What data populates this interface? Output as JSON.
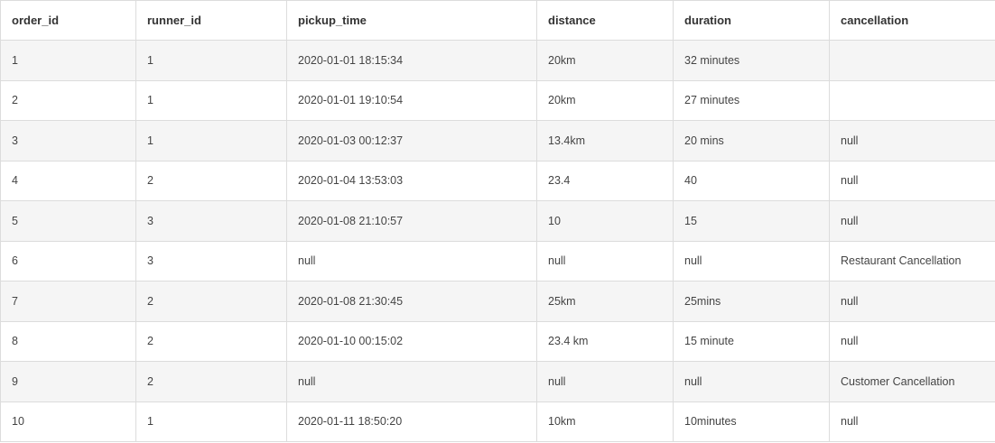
{
  "table": {
    "columns": [
      "order_id",
      "runner_id",
      "pickup_time",
      "distance",
      "duration",
      "cancellation"
    ],
    "rows": [
      [
        "1",
        "1",
        "2020-01-01 18:15:34",
        "20km",
        "32 minutes",
        ""
      ],
      [
        "2",
        "1",
        "2020-01-01 19:10:54",
        "20km",
        "27 minutes",
        ""
      ],
      [
        "3",
        "1",
        "2020-01-03 00:12:37",
        "13.4km",
        "20 mins",
        "null"
      ],
      [
        "4",
        "2",
        "2020-01-04 13:53:03",
        "23.4",
        "40",
        "null"
      ],
      [
        "5",
        "3",
        "2020-01-08 21:10:57",
        "10",
        "15",
        "null"
      ],
      [
        "6",
        "3",
        "null",
        "null",
        "null",
        "Restaurant Cancellation"
      ],
      [
        "7",
        "2",
        "2020-01-08 21:30:45",
        "25km",
        "25mins",
        "null"
      ],
      [
        "8",
        "2",
        "2020-01-10 00:15:02",
        "23.4 km",
        "15 minute",
        "null"
      ],
      [
        "9",
        "2",
        "null",
        "null",
        "null",
        "Customer Cancellation"
      ],
      [
        "10",
        "1",
        "2020-01-11 18:50:20",
        "10km",
        "10minutes",
        "null"
      ]
    ]
  },
  "colors": {
    "border": "#dcdcdc",
    "stripe": "#f5f5f5",
    "header_text": "#333333",
    "cell_text": "#444444"
  }
}
